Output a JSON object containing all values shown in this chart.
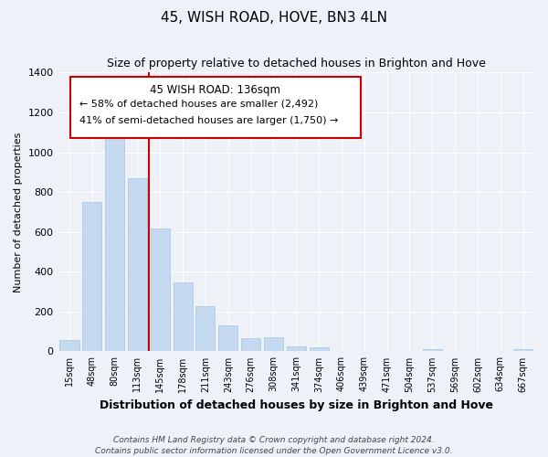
{
  "title": "45, WISH ROAD, HOVE, BN3 4LN",
  "subtitle": "Size of property relative to detached houses in Brighton and Hove",
  "xlabel": "Distribution of detached houses by size in Brighton and Hove",
  "ylabel": "Number of detached properties",
  "categories": [
    "15sqm",
    "48sqm",
    "80sqm",
    "113sqm",
    "145sqm",
    "178sqm",
    "211sqm",
    "243sqm",
    "276sqm",
    "308sqm",
    "341sqm",
    "374sqm",
    "406sqm",
    "439sqm",
    "471sqm",
    "504sqm",
    "537sqm",
    "569sqm",
    "602sqm",
    "634sqm",
    "667sqm"
  ],
  "values": [
    55,
    750,
    1095,
    870,
    615,
    345,
    228,
    130,
    68,
    70,
    25,
    20,
    0,
    0,
    0,
    0,
    10,
    0,
    0,
    0,
    10
  ],
  "bar_color": "#c5d9f0",
  "bar_edgecolor": "#a8c4e0",
  "vline_color": "#cc0000",
  "vline_x_index": 3.5,
  "annotation_title": "45 WISH ROAD: 136sqm",
  "annotation_line1": "← 58% of detached houses are smaller (2,492)",
  "annotation_line2": "41% of semi-detached houses are larger (1,750) →",
  "annotation_box_facecolor": "#ffffff",
  "annotation_box_edgecolor": "#cc0000",
  "footer1": "Contains HM Land Registry data © Crown copyright and database right 2024.",
  "footer2": "Contains public sector information licensed under the Open Government Licence v3.0.",
  "ylim": [
    0,
    1400
  ],
  "figsize": [
    6.0,
    5.0
  ],
  "dpi": 100,
  "bg_color": "#eef2f8",
  "grid_color": "#ffffff",
  "title_fontsize": 11,
  "subtitle_fontsize": 9,
  "ylabel_fontsize": 8,
  "xlabel_fontsize": 9,
  "tick_fontsize": 7,
  "footer_fontsize": 6.5
}
